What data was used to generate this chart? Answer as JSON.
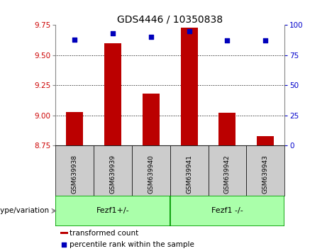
{
  "title": "GDS4446 / 10350838",
  "samples": [
    "GSM639938",
    "GSM639939",
    "GSM639940",
    "GSM639941",
    "GSM639942",
    "GSM639943"
  ],
  "bar_values": [
    9.03,
    9.6,
    9.18,
    9.73,
    9.02,
    8.83
  ],
  "bar_baseline": 8.75,
  "percentile_values": [
    88,
    93,
    90,
    95,
    87,
    87
  ],
  "ylim_left": [
    8.75,
    9.75
  ],
  "ylim_right": [
    0,
    100
  ],
  "yticks_left": [
    8.75,
    9.0,
    9.25,
    9.5,
    9.75
  ],
  "yticks_right": [
    0,
    25,
    50,
    75,
    100
  ],
  "grid_values": [
    9.0,
    9.25,
    9.5
  ],
  "bar_color": "#bb0000",
  "percentile_color": "#0000bb",
  "group1_label": "Fezf1+/-",
  "group2_label": "Fezf1 -/-",
  "group1_indices": [
    0,
    1,
    2
  ],
  "group2_indices": [
    3,
    4,
    5
  ],
  "group_color": "#aaffaa",
  "group_border_color": "#009900",
  "xlabel": "genotype/variation",
  "legend_bar_label": "transformed count",
  "legend_percentile_label": "percentile rank within the sample",
  "tick_color_left": "#cc0000",
  "tick_color_right": "#0000cc",
  "background_color": "#ffffff",
  "sample_box_color": "#cccccc"
}
